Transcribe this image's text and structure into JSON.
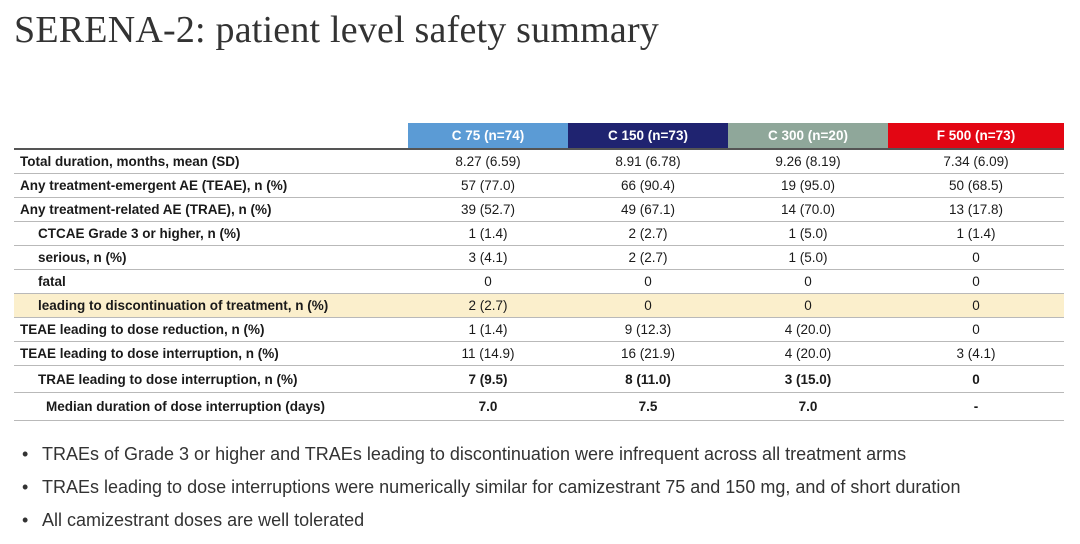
{
  "title": "SERENA-2: patient level safety summary",
  "colors": {
    "arm1": "#5b9bd5",
    "arm2": "#1f2370",
    "arm3": "#8fa79a",
    "arm4": "#e30613",
    "highlight_row": "#fbefcc"
  },
  "table": {
    "headers": [
      "C 75 (n=74)",
      "C 150 (n=73)",
      "C 300 (n=20)",
      "F 500 (n=73)"
    ],
    "rows": [
      {
        "label": "Total duration, months, mean (SD)",
        "values": [
          "8.27 (6.59)",
          "8.91 (6.78)",
          "9.26 (8.19)",
          "7.34 (6.09)"
        ]
      },
      {
        "label": "Any treatment-emergent AE (TEAE), n (%)",
        "values": [
          "57 (77.0)",
          "66 (90.4)",
          "19 (95.0)",
          "50 (68.5)"
        ]
      },
      {
        "label": "Any treatment-related AE (TRAE), n (%)",
        "values": [
          "39 (52.7)",
          "49 (67.1)",
          "14 (70.0)",
          "13 (17.8)"
        ]
      },
      {
        "label": "CTCAE Grade 3 or higher, n (%)",
        "values": [
          "1 (1.4)",
          "2 (2.7)",
          "1 (5.0)",
          "1 (1.4)"
        ]
      },
      {
        "label": "serious, n (%)",
        "values": [
          "3 (4.1)",
          "2 (2.7)",
          "1 (5.0)",
          "0"
        ]
      },
      {
        "label": "fatal",
        "values": [
          "0",
          "0",
          "0",
          "0"
        ]
      },
      {
        "label": "leading to discontinuation of treatment, n (%)",
        "values": [
          "2 (2.7)",
          "0",
          "0",
          "0"
        ]
      },
      {
        "label": "TEAE leading to dose reduction, n (%)",
        "values": [
          "1 (1.4)",
          "9 (12.3)",
          "4 (20.0)",
          "0"
        ]
      },
      {
        "label": "TEAE leading to dose interruption, n (%)",
        "values": [
          "11 (14.9)",
          "16 (21.9)",
          "4 (20.0)",
          "3 (4.1)"
        ]
      },
      {
        "label": "TRAE leading to dose interruption, n (%)",
        "values": [
          "7 (9.5)",
          "8 (11.0)",
          "3 (15.0)",
          "0"
        ]
      },
      {
        "label": "Median duration of dose interruption (days)",
        "values": [
          "7.0",
          "7.5",
          "7.0",
          "-"
        ]
      }
    ]
  },
  "bullets": [
    "TRAEs of Grade 3 or higher and TRAEs leading to discontinuation were infrequent across all treatment arms",
    "TRAEs leading to dose interruptions were numerically similar for camizestrant 75 and 150 mg, and of short duration",
    "All camizestrant doses are well tolerated"
  ]
}
